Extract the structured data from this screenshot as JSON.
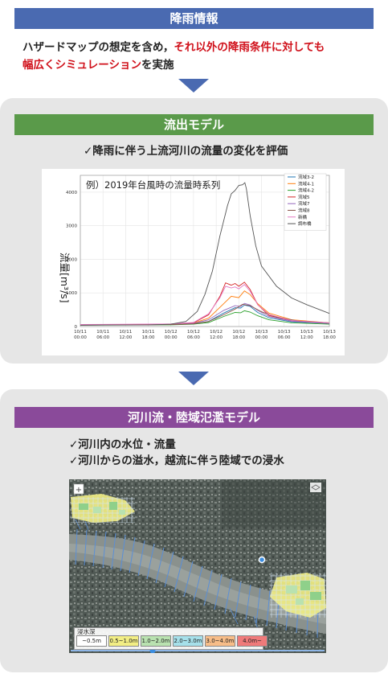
{
  "section1": {
    "title": "降雨情報",
    "text_part1": "ハザードマップの想定を含め，",
    "text_red1": "それ以外の降雨条件に対しても",
    "text_red2": "幅広くシミュレーション",
    "text_part2": "を実施"
  },
  "section2": {
    "title": "流出モデル",
    "subtitle": "✓降雨に伴う上流河川の流量の変化を評価"
  },
  "section3": {
    "title": "河川流・陸域氾濫モデル",
    "bullet1": "✓河川内の水位・流量",
    "bullet2": "✓河川からの溢水，越流に伴う陸域での浸水"
  },
  "colors": {
    "blue": "#4a6ab1",
    "green": "#5a9a4a",
    "purple": "#8a4a9a",
    "red": "#d0101a"
  },
  "chart_data": {
    "type": "line",
    "title": "例）2019年台風時の流量時系列",
    "ylabel": "流量[m³/s]",
    "xlabel": "",
    "ylim": [
      0,
      4500
    ],
    "yticks": [
      0,
      1000,
      2000,
      3000,
      4000
    ],
    "x": [
      0,
      6,
      12,
      18,
      24,
      30,
      36,
      42,
      48,
      54,
      60,
      66
    ],
    "x_tick_labels": [
      "10/11\n00:00",
      "10/11\n06:00",
      "10/11\n12:00",
      "10/11\n18:00",
      "10/12\n00:00",
      "10/12\n06:00",
      "10/12\n12:00",
      "10/12\n18:00",
      "10/13\n00:00",
      "10/13\n06:00",
      "10/13\n12:00",
      "10/13\n18:00"
    ],
    "legend_position": "top-right",
    "series": [
      {
        "name": "流域3-2",
        "color": "#1f77b4",
        "points": [
          [
            0,
            50
          ],
          [
            24,
            60
          ],
          [
            30,
            80
          ],
          [
            34,
            150
          ],
          [
            38,
            400
          ],
          [
            41,
            560
          ],
          [
            42.5,
            550
          ],
          [
            43.5,
            640
          ],
          [
            45,
            600
          ],
          [
            47,
            420
          ],
          [
            50,
            260
          ],
          [
            56,
            140
          ],
          [
            66,
            90
          ]
        ]
      },
      {
        "name": "流域4-1",
        "color": "#ff7f0e",
        "points": [
          [
            0,
            50
          ],
          [
            24,
            70
          ],
          [
            30,
            100
          ],
          [
            34,
            250
          ],
          [
            38,
            680
          ],
          [
            40,
            900
          ],
          [
            42,
            860
          ],
          [
            43.5,
            1060
          ],
          [
            45,
            950
          ],
          [
            47,
            680
          ],
          [
            50,
            400
          ],
          [
            56,
            200
          ],
          [
            66,
            110
          ]
        ]
      },
      {
        "name": "流域4-2",
        "color": "#2ca02c",
        "points": [
          [
            0,
            40
          ],
          [
            24,
            50
          ],
          [
            30,
            70
          ],
          [
            34,
            120
          ],
          [
            38,
            300
          ],
          [
            41,
            420
          ],
          [
            42.5,
            410
          ],
          [
            43.5,
            470
          ],
          [
            45,
            430
          ],
          [
            47,
            320
          ],
          [
            50,
            200
          ],
          [
            56,
            110
          ],
          [
            66,
            70
          ]
        ]
      },
      {
        "name": "流域5",
        "color": "#d62728",
        "points": [
          [
            0,
            50
          ],
          [
            24,
            70
          ],
          [
            30,
            110
          ],
          [
            34,
            350
          ],
          [
            37,
            900
          ],
          [
            38.5,
            1300
          ],
          [
            40,
            1230
          ],
          [
            41,
            1280
          ],
          [
            42,
            1200
          ],
          [
            43.5,
            1320
          ],
          [
            45,
            1100
          ],
          [
            47,
            650
          ],
          [
            50,
            330
          ],
          [
            56,
            160
          ],
          [
            66,
            100
          ]
        ]
      },
      {
        "name": "流域7",
        "color": "#9467bd",
        "points": [
          [
            0,
            40
          ],
          [
            24,
            60
          ],
          [
            30,
            90
          ],
          [
            34,
            200
          ],
          [
            38,
            480
          ],
          [
            41,
            620
          ],
          [
            42.5,
            600
          ],
          [
            43.5,
            690
          ],
          [
            45,
            640
          ],
          [
            47,
            480
          ],
          [
            50,
            300
          ],
          [
            56,
            160
          ],
          [
            66,
            90
          ]
        ]
      },
      {
        "name": "流域8",
        "color": "#8c564b",
        "points": [
          [
            0,
            40
          ],
          [
            24,
            60
          ],
          [
            30,
            80
          ],
          [
            34,
            150
          ],
          [
            38,
            350
          ],
          [
            41,
            520
          ],
          [
            43,
            660
          ],
          [
            45,
            620
          ],
          [
            48,
            440
          ],
          [
            52,
            280
          ],
          [
            58,
            160
          ],
          [
            66,
            110
          ]
        ]
      },
      {
        "name": "新橋",
        "color": "#e377c2",
        "points": [
          [
            0,
            60
          ],
          [
            24,
            80
          ],
          [
            30,
            120
          ],
          [
            34,
            380
          ],
          [
            37,
            860
          ],
          [
            38.5,
            1200
          ],
          [
            40,
            1150
          ],
          [
            41,
            1180
          ],
          [
            42,
            1120
          ],
          [
            43.5,
            1250
          ],
          [
            45,
            1050
          ],
          [
            47,
            650
          ],
          [
            50,
            360
          ],
          [
            56,
            180
          ],
          [
            66,
            110
          ]
        ]
      },
      {
        "name": "調布橋",
        "color": "#555555",
        "points": [
          [
            0,
            40
          ],
          [
            18,
            45
          ],
          [
            24,
            70
          ],
          [
            28,
            150
          ],
          [
            31,
            450
          ],
          [
            33,
            950
          ],
          [
            35,
            1650
          ],
          [
            37,
            2700
          ],
          [
            39,
            3600
          ],
          [
            40,
            3950
          ],
          [
            41,
            4050
          ],
          [
            42,
            4200
          ],
          [
            43,
            4220
          ],
          [
            43.6,
            4280
          ],
          [
            44,
            4100
          ],
          [
            45,
            3300
          ],
          [
            46.5,
            2400
          ],
          [
            48,
            1800
          ],
          [
            52,
            1200
          ],
          [
            56,
            850
          ],
          [
            60,
            650
          ],
          [
            66,
            390
          ]
        ]
      }
    ]
  },
  "map": {
    "legend_title": "浸水深",
    "legend_items": [
      {
        "label": "~0.5m",
        "color": "#ffffff"
      },
      {
        "label": "0.5~1.0m",
        "color": "#f2ee84"
      },
      {
        "label": "1.0~2.0m",
        "color": "#b9e2b0"
      },
      {
        "label": "2.0~3.0m",
        "color": "#a6e0ea"
      },
      {
        "label": "3.0~4.0m",
        "color": "#f7bd88"
      },
      {
        "label": "4.0m~",
        "color": "#ef7a7a"
      }
    ]
  }
}
